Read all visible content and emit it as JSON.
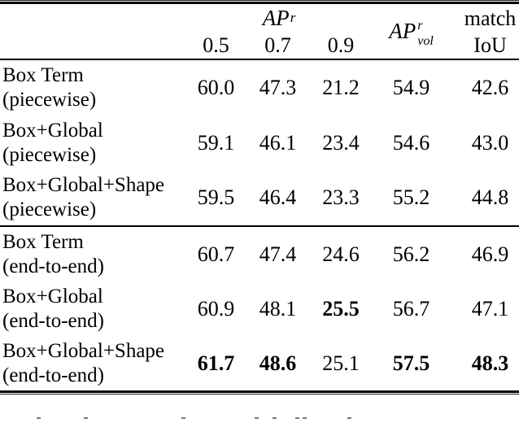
{
  "table": {
    "header": {
      "ap": {
        "base": "AP",
        "sup": "r"
      },
      "thresholds": [
        "0.5",
        "0.7",
        "0.9"
      ],
      "ap_vol": {
        "base": "AP",
        "sup": "r",
        "sub": "vol"
      },
      "match_line1": "match",
      "match_line2": "IoU"
    },
    "sections": [
      {
        "id": "piecewise",
        "rows": [
          {
            "method": "Box Term",
            "setting": "(piecewise)",
            "values": [
              "60.0",
              "47.3",
              "21.2",
              "54.9",
              "42.6"
            ],
            "bold": [
              false,
              false,
              false,
              false,
              false
            ]
          },
          {
            "method": "Box+Global",
            "setting": "(piecewise)",
            "values": [
              "59.1",
              "46.1",
              "23.4",
              "54.6",
              "43.0"
            ],
            "bold": [
              false,
              false,
              false,
              false,
              false
            ]
          },
          {
            "method": "Box+Global+Shape",
            "setting": "(piecewise)",
            "values": [
              "59.5",
              "46.4",
              "23.3",
              "55.2",
              "44.8"
            ],
            "bold": [
              false,
              false,
              false,
              false,
              false
            ]
          }
        ]
      },
      {
        "id": "end-to-end",
        "rows": [
          {
            "method": "Box Term",
            "setting": "(end-to-end)",
            "values": [
              "60.7",
              "47.4",
              "24.6",
              "56.2",
              "46.9"
            ],
            "bold": [
              false,
              false,
              false,
              false,
              false
            ]
          },
          {
            "method": "Box+Global",
            "setting": "(end-to-end)",
            "values": [
              "60.9",
              "48.1",
              "25.5",
              "56.7",
              "47.1"
            ],
            "bold": [
              false,
              false,
              true,
              false,
              false
            ]
          },
          {
            "method": "Box+Global+Shape",
            "setting": "(end-to-end)",
            "values": [
              "61.7",
              "48.6",
              "25.1",
              "57.5",
              "48.3"
            ],
            "bold": [
              true,
              true,
              false,
              true,
              true
            ]
          }
        ]
      }
    ]
  },
  "colors": {
    "text": "#000000",
    "rule": "#000000",
    "background": "#ffffff"
  },
  "caption_fragments_x": [
    45,
    103,
    223,
    313,
    335,
    363,
    372,
    427
  ]
}
